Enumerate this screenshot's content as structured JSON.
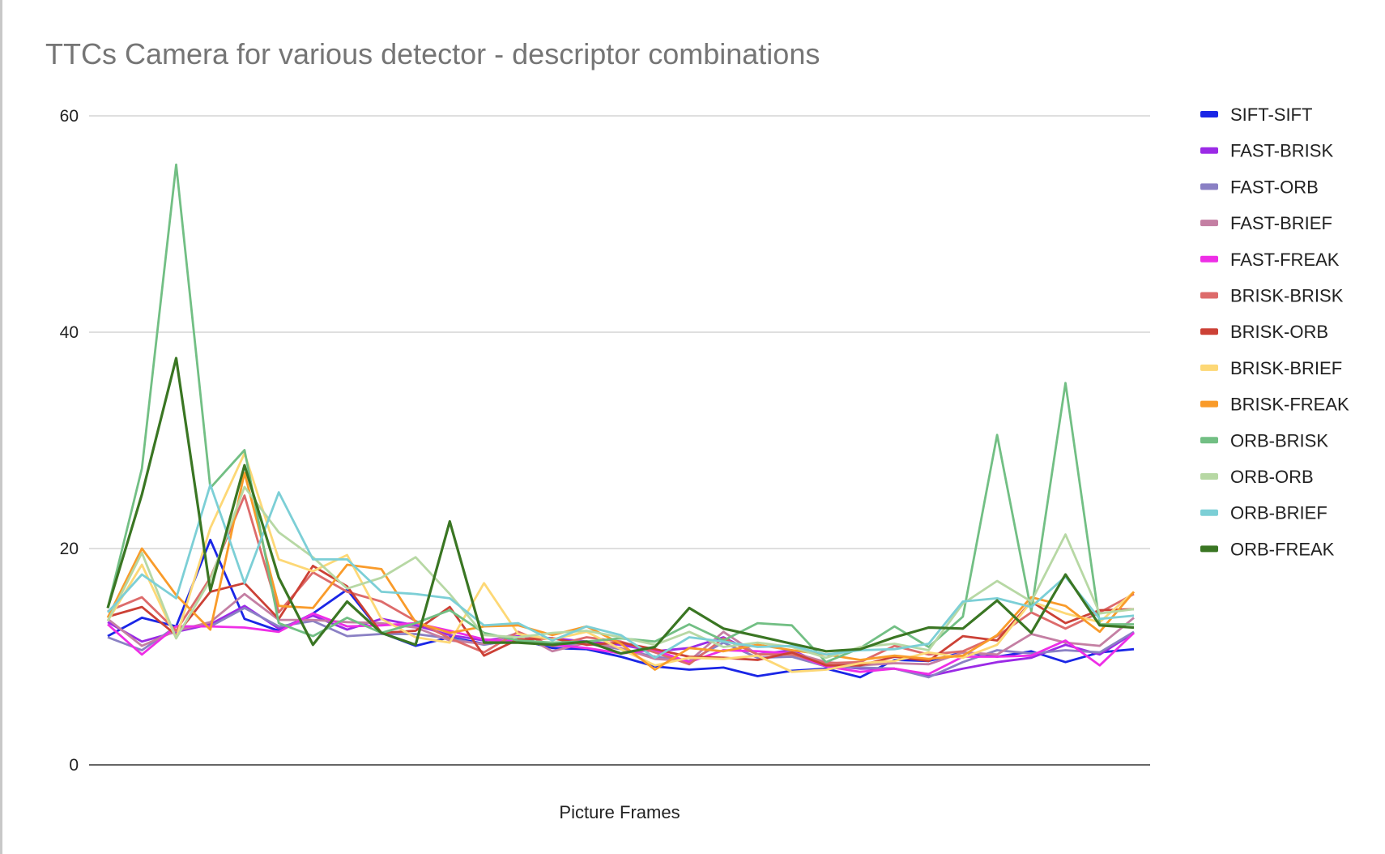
{
  "chart_data": {
    "type": "line",
    "title": "TTCs Camera for various detector - descriptor combinations",
    "xlabel": "Picture Frames",
    "ylabel": "",
    "ylim": [
      0,
      60
    ],
    "yticks": [
      0,
      20,
      40,
      60
    ],
    "grid": true,
    "legend_position": "right",
    "series": [
      {
        "name": "SIFT-SIFT",
        "color": "#1a26e6",
        "values": [
          11.9,
          13.6,
          12.8,
          20.8,
          13.5,
          12.4,
          14.0,
          16.2,
          12.2,
          11.0,
          11.8,
          11.2,
          11.6,
          10.8,
          10.7,
          10.0,
          9.1,
          8.8,
          9.0,
          8.2,
          8.7,
          8.9,
          8.1,
          9.7,
          9.6,
          10.4,
          10.0,
          10.5,
          9.5,
          10.4,
          10.7
        ]
      },
      {
        "name": "FAST-BRISK",
        "color": "#9b2ae6",
        "values": [
          13.2,
          11.4,
          12.3,
          13.0,
          14.7,
          12.6,
          13.8,
          12.5,
          13.5,
          12.9,
          12.0,
          11.5,
          11.9,
          11.7,
          11.4,
          11.1,
          10.5,
          10.8,
          11.8,
          10.2,
          10.6,
          9.2,
          8.9,
          8.9,
          8.2,
          8.9,
          9.5,
          9.9,
          11.1,
          10.2,
          12.2
        ]
      },
      {
        "name": "FAST-ORB",
        "color": "#8a80c4",
        "values": [
          11.8,
          10.6,
          12.8,
          12.8,
          14.5,
          12.8,
          13.3,
          11.9,
          12.1,
          12.1,
          11.7,
          11.1,
          11.6,
          11.0,
          11.2,
          10.7,
          10.0,
          9.6,
          11.3,
          9.9,
          10.0,
          9.1,
          9.0,
          8.9,
          8.1,
          9.5,
          10.6,
          10.3,
          10.6,
          10.4,
          12.3
        ]
      },
      {
        "name": "FAST-BRIEF",
        "color": "#c47fa3",
        "values": [
          13.5,
          11.0,
          12.4,
          13.2,
          15.8,
          13.4,
          13.4,
          13.2,
          13.1,
          12.7,
          11.5,
          11.2,
          12.2,
          10.5,
          11.3,
          10.8,
          9.8,
          9.6,
          12.3,
          10.2,
          10.4,
          9.5,
          9.2,
          9.4,
          9.3,
          10.4,
          10.2,
          12.1,
          11.3,
          11.0,
          13.6
        ]
      },
      {
        "name": "FAST-FREAK",
        "color": "#ee2ee6",
        "values": [
          13.0,
          10.2,
          12.8,
          12.8,
          12.7,
          12.3,
          14.0,
          12.8,
          12.9,
          13.1,
          12.4,
          11.6,
          11.4,
          11.1,
          10.8,
          10.3,
          10.6,
          9.5,
          10.6,
          10.5,
          10.3,
          9.1,
          8.6,
          8.9,
          8.4,
          10.0,
          10.0,
          10.1,
          11.5,
          9.2,
          12.2
        ]
      },
      {
        "name": "BRISK-BRISK",
        "color": "#dd6b6b",
        "values": [
          14.2,
          15.5,
          12.4,
          17.3,
          24.9,
          14.1,
          17.8,
          16.0,
          15.1,
          13.3,
          11.7,
          10.4,
          12.3,
          11.0,
          11.8,
          11.4,
          10.4,
          9.3,
          11.7,
          10.2,
          10.2,
          9.4,
          9.5,
          11.0,
          10.2,
          10.5,
          11.9,
          14.1,
          12.6,
          14.1,
          15.8
        ]
      },
      {
        "name": "BRISK-ORB",
        "color": "#cc4136",
        "values": [
          13.7,
          14.6,
          12.0,
          16.0,
          16.8,
          13.5,
          18.4,
          16.5,
          12.2,
          12.4,
          14.6,
          10.1,
          11.6,
          11.7,
          11.1,
          11.3,
          10.7,
          10.0,
          9.9,
          9.7,
          10.4,
          9.2,
          9.2,
          10.0,
          9.6,
          11.9,
          11.5,
          15.1,
          13.1,
          14.3,
          14.4
        ]
      },
      {
        "name": "BRISK-BRIEF",
        "color": "#fdd876",
        "values": [
          13.3,
          18.5,
          11.7,
          21.9,
          28.8,
          19.0,
          17.9,
          19.4,
          13.5,
          11.8,
          11.3,
          16.8,
          12.1,
          11.6,
          12.3,
          10.7,
          9.2,
          9.9,
          9.8,
          10.1,
          8.6,
          8.8,
          9.4,
          9.6,
          10.4,
          9.9,
          11.1,
          15.1,
          14.0,
          13.2,
          16.0
        ]
      },
      {
        "name": "BRISK-FREAK",
        "color": "#f99b2a",
        "values": [
          13.6,
          20.0,
          15.7,
          12.5,
          27.0,
          14.7,
          14.5,
          18.5,
          18.1,
          13.2,
          12.2,
          12.8,
          12.9,
          12.0,
          12.8,
          11.2,
          8.8,
          10.8,
          10.5,
          11.1,
          10.6,
          10.2,
          9.7,
          10.1,
          9.8,
          10.1,
          12.0,
          15.5,
          14.7,
          12.3,
          16.0
        ]
      },
      {
        "name": "ORB-BRISK",
        "color": "#72bf84",
        "values": [
          14.5,
          27.4,
          55.5,
          25.6,
          29.1,
          13.1,
          11.9,
          13.6,
          12.2,
          13.1,
          14.3,
          12.2,
          11.5,
          11.3,
          11.4,
          11.7,
          11.4,
          13.0,
          11.5,
          13.1,
          12.9,
          9.5,
          10.8,
          12.8,
          10.9,
          13.7,
          30.5,
          14.2,
          35.3,
          13.0,
          13.0
        ]
      },
      {
        "name": "ORB-ORB",
        "color": "#b7d8a4",
        "values": [
          13.3,
          19.6,
          11.7,
          17.1,
          25.7,
          21.5,
          19.2,
          16.3,
          17.3,
          19.2,
          15.8,
          12.0,
          11.8,
          12.2,
          12.4,
          11.8,
          11.1,
          12.3,
          10.9,
          11.3,
          10.9,
          9.9,
          10.9,
          11.2,
          10.6,
          14.9,
          17.0,
          15.1,
          21.3,
          14.0,
          14.4
        ]
      },
      {
        "name": "ORB-BRIEF",
        "color": "#7ccfd6",
        "values": [
          14.1,
          17.6,
          15.4,
          25.9,
          16.8,
          25.2,
          19.0,
          19.0,
          16.0,
          15.8,
          15.4,
          12.9,
          13.1,
          11.5,
          12.8,
          12.0,
          9.9,
          11.8,
          11.4,
          10.9,
          11.0,
          10.2,
          10.6,
          10.7,
          11.2,
          15.1,
          15.4,
          14.6,
          17.4,
          13.5,
          13.8
        ]
      },
      {
        "name": "ORB-FREAK",
        "color": "#3a7623",
        "values": [
          14.5,
          25.0,
          37.6,
          16.1,
          27.7,
          17.3,
          11.1,
          15.1,
          12.2,
          11.1,
          22.5,
          11.3,
          11.3,
          11.1,
          11.4,
          10.3,
          10.9,
          14.5,
          12.6,
          11.9,
          11.2,
          10.5,
          10.7,
          11.8,
          12.7,
          12.6,
          15.2,
          12.2,
          17.6,
          12.9,
          12.7
        ]
      }
    ]
  }
}
